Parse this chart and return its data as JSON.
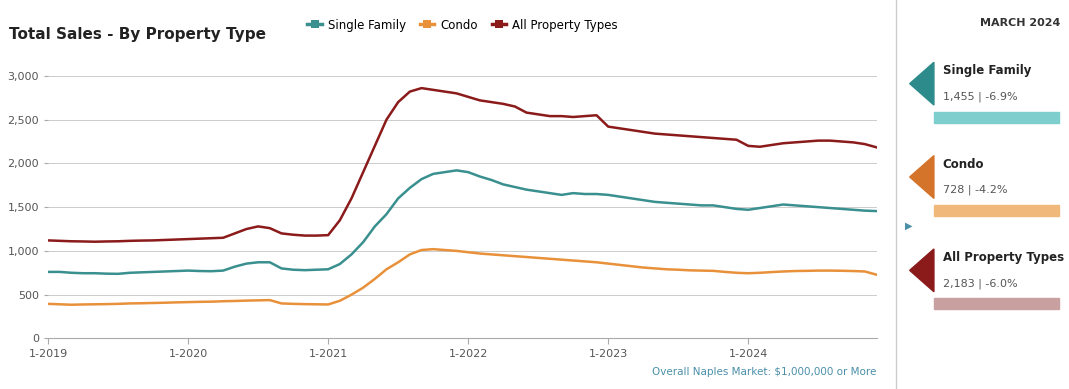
{
  "title": "Total Sales - By Property Type",
  "subtitle": "Overall Naples Market: $1,000,000 or More",
  "legend_labels": [
    "Single Family",
    "Condo",
    "All Property Types"
  ],
  "line_colors": [
    "#3a8f8f",
    "#e8913a",
    "#8b1a1a"
  ],
  "background_color": "#ffffff",
  "panel_color": "#ffffff",
  "ylim": [
    0,
    3200
  ],
  "yticks": [
    0,
    500,
    1000,
    1500,
    2000,
    2500,
    3000
  ],
  "x_tick_labels": [
    "1-2019",
    "1-2020",
    "1-2021",
    "1-2022",
    "1-2023",
    "1-2024"
  ],
  "sidebar_title": "MARCH 2024",
  "sidebar_bg": "#f0f0f0",
  "sidebar_entries": [
    {
      "label": "Single Family",
      "value": "1,455 | -6.9%",
      "color": "#2e8b8b",
      "bar_color": "#7ecece"
    },
    {
      "label": "Condo",
      "value": "728 | -4.2%",
      "color": "#d4732a",
      "bar_color": "#f0b87a"
    },
    {
      "label": "All Property Types",
      "value": "2,183 | -6.0%",
      "color": "#8b1a1a",
      "bar_color": "#c9a0a0"
    }
  ],
  "single_family": [
    760,
    760,
    750,
    745,
    745,
    740,
    738,
    750,
    755,
    760,
    765,
    770,
    775,
    770,
    768,
    775,
    820,
    855,
    870,
    870,
    800,
    785,
    780,
    785,
    790,
    850,
    960,
    1100,
    1280,
    1420,
    1600,
    1720,
    1820,
    1880,
    1900,
    1920,
    1900,
    1850,
    1810,
    1760,
    1730,
    1700,
    1680,
    1660,
    1640,
    1660,
    1650,
    1650,
    1640,
    1620,
    1600,
    1580,
    1560,
    1550,
    1540,
    1530,
    1520,
    1520,
    1500,
    1480,
    1470,
    1490,
    1510,
    1530,
    1520,
    1510,
    1500,
    1490,
    1480,
    1470,
    1460,
    1455
  ],
  "condo": [
    395,
    390,
    385,
    388,
    390,
    392,
    395,
    400,
    402,
    405,
    408,
    412,
    415,
    418,
    420,
    425,
    428,
    432,
    435,
    438,
    400,
    395,
    392,
    390,
    388,
    430,
    500,
    580,
    680,
    790,
    870,
    960,
    1010,
    1020,
    1010,
    1000,
    985,
    970,
    960,
    950,
    940,
    930,
    920,
    910,
    900,
    890,
    880,
    870,
    855,
    840,
    825,
    810,
    800,
    790,
    785,
    778,
    775,
    772,
    760,
    750,
    745,
    750,
    758,
    765,
    770,
    772,
    775,
    775,
    773,
    770,
    765,
    728
  ],
  "all_types": [
    1120,
    1115,
    1110,
    1108,
    1105,
    1108,
    1110,
    1115,
    1118,
    1120,
    1125,
    1130,
    1135,
    1140,
    1145,
    1150,
    1200,
    1250,
    1280,
    1260,
    1200,
    1185,
    1175,
    1175,
    1180,
    1350,
    1600,
    1900,
    2200,
    2500,
    2700,
    2820,
    2860,
    2840,
    2820,
    2800,
    2760,
    2720,
    2700,
    2680,
    2650,
    2580,
    2560,
    2540,
    2540,
    2530,
    2540,
    2550,
    2420,
    2400,
    2380,
    2360,
    2340,
    2330,
    2320,
    2310,
    2300,
    2290,
    2280,
    2270,
    2200,
    2190,
    2210,
    2230,
    2240,
    2250,
    2260,
    2260,
    2250,
    2240,
    2220,
    2183
  ]
}
